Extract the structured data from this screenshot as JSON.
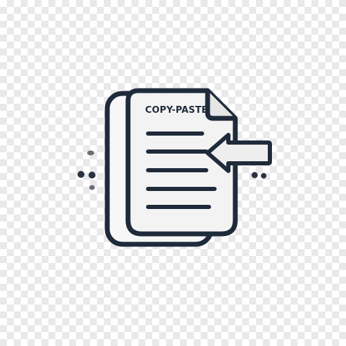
{
  "icon": {
    "name": "copy-paste-icon",
    "label": "COPY-PASTE",
    "colors": {
      "outline": "#1f2a3a",
      "page_fill": "#f3f3f3",
      "page_back_fill": "#f7f7f7",
      "arrow_fill": "#eeeeee",
      "dots": "#2c3340"
    }
  }
}
